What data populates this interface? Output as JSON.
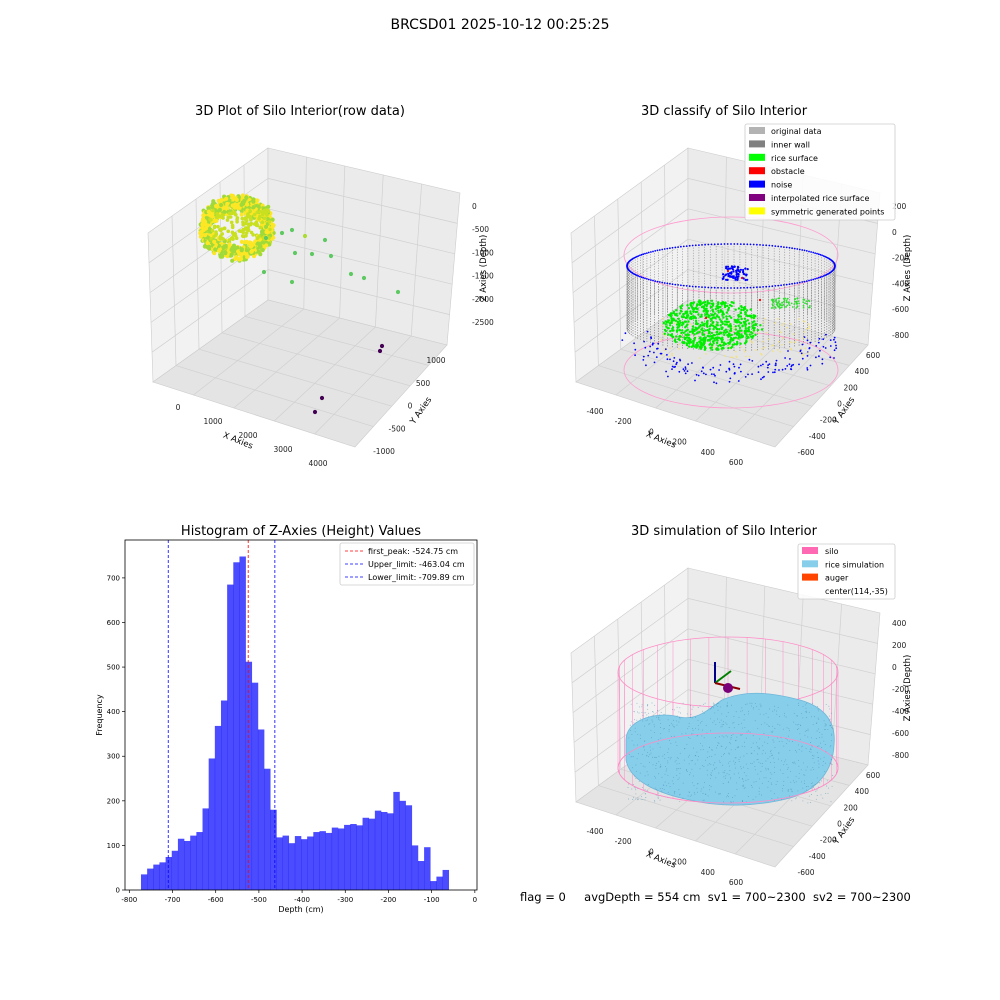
{
  "figure_title": "BRCSD01 2025-10-12 00:25:25",
  "footer": {
    "flag": "flag = 0",
    "avg_depth": "avgDepth = 554 cm",
    "sv1": "sv1 = 700~2300",
    "sv2": "sv2 = 700~2300"
  },
  "chart_data": [
    {
      "type": "scatter",
      "title": "3D Plot of Silo Interior(row data)",
      "xlabel": "X Axies",
      "ylabel": "Y Axies",
      "zlabel": "Z Axies (Depth)",
      "x_ticks": [
        "0",
        "1000",
        "2000",
        "3000",
        "4000"
      ],
      "y_ticks": [
        "1000",
        "500",
        "0",
        "-500",
        "-1000"
      ],
      "z_ticks": [
        "0",
        "-500",
        "-1000",
        "-1500",
        "-2000",
        "-2500"
      ],
      "colormap": [
        "#440154",
        "#21918c",
        "#5ec962",
        "#fde725"
      ]
    },
    {
      "type": "scatter",
      "title": "3D classify of Silo Interior",
      "xlabel": "X Axies",
      "ylabel": "Y Axies",
      "zlabel": "Z Axies (Depth)",
      "x_ticks": [
        "-400",
        "-200",
        "0",
        "200",
        "400",
        "600"
      ],
      "y_ticks": [
        "600",
        "400",
        "200",
        "0",
        "-200",
        "-400",
        "-600"
      ],
      "z_ticks": [
        "200",
        "0",
        "-200",
        "-400",
        "-600",
        "-800"
      ],
      "legend": [
        {
          "label": "original data",
          "color": "#b3b3b3"
        },
        {
          "label": "inner wall",
          "color": "#808080"
        },
        {
          "label": "rice surface",
          "color": "#00ff00"
        },
        {
          "label": "obstacle",
          "color": "#ff0000"
        },
        {
          "label": "noise",
          "color": "#0000ff"
        },
        {
          "label": "interpolated rice surface",
          "color": "#800080"
        },
        {
          "label": "symmetric generated points",
          "color": "#ffff00"
        }
      ]
    },
    {
      "type": "bar",
      "title": "Histogram of Z-Axies (Height) Values",
      "xlabel": "Depth (cm)",
      "ylabel": "Frequency",
      "xlim": [
        -810,
        5
      ],
      "ylim": [
        0,
        785
      ],
      "x_ticks": [
        -800,
        -700,
        -600,
        -500,
        -400,
        -300,
        -200,
        -100,
        0
      ],
      "y_ticks": [
        0,
        100,
        200,
        300,
        400,
        500,
        600,
        700
      ],
      "bar_color": "#0000ff",
      "bin_width": 14.25,
      "bin_start": -773,
      "values": [
        35,
        48,
        57,
        62,
        74,
        88,
        115,
        110,
        122,
        130,
        183,
        295,
        368,
        425,
        685,
        735,
        748,
        512,
        465,
        360,
        272,
        180,
        118,
        122,
        105,
        121,
        114,
        120,
        130,
        132,
        128,
        140,
        138,
        146,
        148,
        145,
        162,
        160,
        178,
        175,
        172,
        220,
        200,
        190,
        100,
        65,
        96,
        20,
        30,
        45
      ],
      "vlines": [
        {
          "label": "first_peak: -524.75 cm",
          "x": -524.75,
          "color": "#ff0000"
        },
        {
          "label": "Upper_limit: -463.04 cm",
          "x": -463.04,
          "color": "#0000ff"
        },
        {
          "label": "Lower_limit: -709.89 cm",
          "x": -709.89,
          "color": "#0000ff"
        }
      ]
    },
    {
      "type": "scatter",
      "title": "3D simulation of Silo Interior",
      "xlabel": "X Axies",
      "ylabel": "Y Axies",
      "zlabel": "Z Axies (Depth)",
      "x_ticks": [
        "-400",
        "-200",
        "0",
        "200",
        "400",
        "600"
      ],
      "y_ticks": [
        "600",
        "400",
        "200",
        "0",
        "-200",
        "-400",
        "-600"
      ],
      "z_ticks": [
        "400",
        "200",
        "0",
        "-200",
        "-400",
        "-600",
        "-800"
      ],
      "legend": [
        {
          "label": "silo",
          "color": "#ff69b4"
        },
        {
          "label": "rice simulation",
          "color": "#87ceeb"
        },
        {
          "label": "auger",
          "color": "#ff4500"
        },
        {
          "label": "center(114,-35)",
          "color": ""
        }
      ]
    }
  ]
}
